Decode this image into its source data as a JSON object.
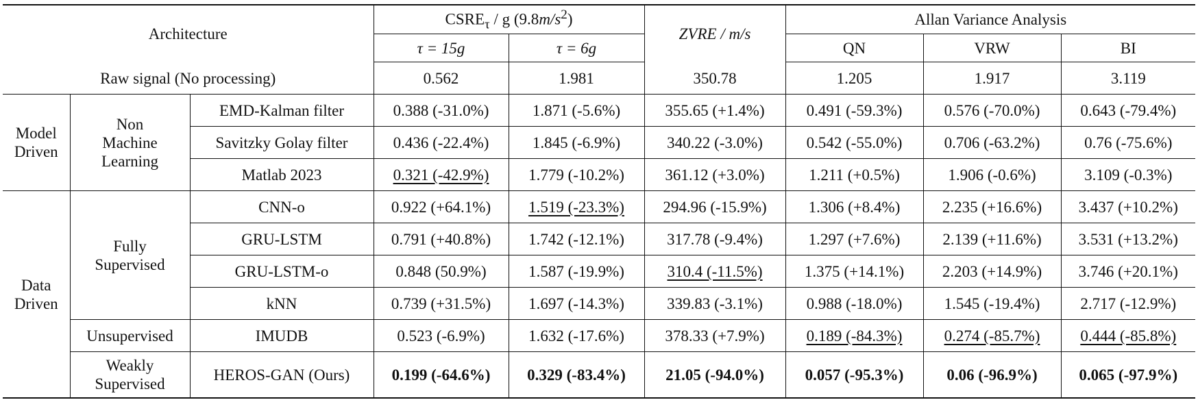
{
  "header": {
    "architecture": "Architecture",
    "csre": [
      "CSRE",
      "τ",
      "/ g (9.8",
      "m/s",
      "2",
      ")"
    ],
    "tau15": "τ = 15g",
    "tau6": "τ = 6g",
    "zvre": "ZVRE / m/s",
    "allan": "Allan Variance Analysis",
    "qn": "QN",
    "vrw": "VRW",
    "bi": "BI"
  },
  "groups": {
    "model": [
      "Model",
      "Driven"
    ],
    "nonml": [
      "Non",
      "Machine",
      "Learning"
    ],
    "data": [
      "Data",
      "Driven"
    ],
    "fully": [
      "Fully",
      "Supervised"
    ],
    "unsup": "Unsupervised",
    "weak": [
      "Weakly",
      "Supervised"
    ]
  },
  "rows": [
    {
      "method": "Raw signal (No processing)",
      "cells": [
        "0.562",
        "1.981",
        "350.78",
        "1.205",
        "1.917",
        "3.119"
      ]
    },
    {
      "method": "EMD-Kalman filter",
      "cells": [
        "0.388 (-31.0%)",
        "1.871 (-5.6%)",
        "355.65 (+1.4%)",
        "0.491 (-59.3%)",
        "0.576 (-70.0%)",
        "0.643 (-79.4%)"
      ]
    },
    {
      "method": "Savitzky Golay filter",
      "cells": [
        "0.436 (-22.4%)",
        "1.845 (-6.9%)",
        "340.22 (-3.0%)",
        "0.542 (-55.0%)",
        "0.706 (-63.2%)",
        "0.76 (-75.6%)"
      ]
    },
    {
      "method": "Matlab 2023",
      "cells": [
        "0.321 (-42.9%)",
        "1.779 (-10.2%)",
        "361.12 (+3.0%)",
        "1.211 (+0.5%)",
        "1.906 (-0.6%)",
        "3.109 (-0.3%)"
      ]
    },
    {
      "method": "CNN-o",
      "cells": [
        "0.922 (+64.1%)",
        "1.519 (-23.3%)",
        "294.96 (-15.9%)",
        "1.306 (+8.4%)",
        "2.235 (+16.6%)",
        "3.437 (+10.2%)"
      ]
    },
    {
      "method": "GRU-LSTM",
      "cells": [
        "0.791 (+40.8%)",
        "1.742 (-12.1%)",
        "317.78 (-9.4%)",
        "1.297 (+7.6%)",
        "2.139 (+11.6%)",
        "3.531 (+13.2%)"
      ]
    },
    {
      "method": "GRU-LSTM-o",
      "cells": [
        "0.848 (50.9%)",
        "1.587 (-19.9%)",
        "310.4 (-11.5%)",
        "1.375 (+14.1%)",
        "2.203 (+14.9%)",
        "3.746 (+20.1%)"
      ]
    },
    {
      "method": "kNN",
      "cells": [
        "0.739 (+31.5%)",
        "1.697 (-14.3%)",
        "339.83 (-3.1%)",
        "0.988 (-18.0%)",
        "1.545 (-19.4%)",
        "2.717 (-12.9%)"
      ]
    },
    {
      "method": "IMUDB",
      "cells": [
        "0.523 (-6.9%)",
        "1.632 (-17.6%)",
        "378.33 (+7.9%)",
        "0.189 (-84.3%)",
        "0.274 (-85.7%)",
        "0.444 (-85.8%)"
      ]
    },
    {
      "method": "HEROS-GAN (Ours)",
      "cells": [
        "0.199 (-64.6%)",
        "0.329 (-83.4%)",
        "21.05 (-94.0%)",
        "0.057 (-95.3%)",
        "0.06 (-96.9%)",
        "0.065 (-97.9%)"
      ]
    }
  ]
}
